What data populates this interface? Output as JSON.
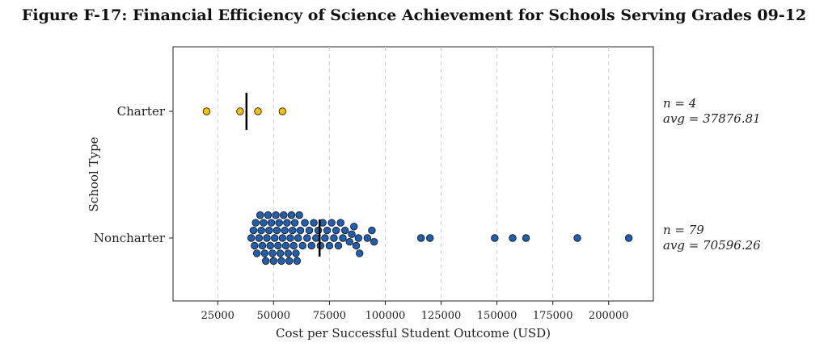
{
  "chart_data": {
    "type": "scatter",
    "title": "Figure F-17: Financial Efficiency of Science Achievement for Schools Serving Grades 09-12",
    "xlabel": "Cost per Successful Student Outcome (USD)",
    "ylabel": "School Type",
    "xlim": [
      5000,
      220000
    ],
    "xticks": [
      25000,
      50000,
      75000,
      100000,
      125000,
      150000,
      175000,
      200000
    ],
    "xtick_labels": [
      "25000",
      "50000",
      "75000",
      "100000",
      "125000",
      "150000",
      "175000",
      "200000"
    ],
    "grid": "vertical dashed",
    "categories": [
      "Charter",
      "Noncharter"
    ],
    "series": [
      {
        "name": "Charter",
        "color": "#F5C000",
        "n_label": "n = 4",
        "avg_label": "avg = 37876.81",
        "avg": 37876.81,
        "values": [
          20000,
          35000,
          43000,
          54000
        ]
      },
      {
        "name": "Noncharter",
        "color": "#1F5FAE",
        "n_label": "n = 79",
        "avg_label": "avg = 70596.26",
        "avg": 70596.26,
        "values": [
          40000,
          41000,
          41500,
          42000,
          42500,
          43500,
          44000,
          44500,
          45000,
          45500,
          46000,
          46500,
          47000,
          47500,
          48000,
          48500,
          49000,
          49500,
          50000,
          50500,
          51000,
          51500,
          52000,
          52500,
          53000,
          53500,
          54000,
          54500,
          55000,
          55500,
          56000,
          56500,
          57000,
          57500,
          58000,
          58500,
          59000,
          59500,
          60000,
          60500,
          61000,
          61500,
          62000,
          63000,
          64000,
          65000,
          66000,
          67000,
          68000,
          69000,
          70000,
          71000,
          72000,
          73000,
          74000,
          75000,
          76000,
          77000,
          78000,
          79000,
          80000,
          81000,
          82000,
          84000,
          85000,
          86000,
          87000,
          88000,
          88500,
          92000,
          94000,
          95000,
          116000,
          120000,
          149000,
          157000,
          163000,
          186000,
          209000
        ]
      }
    ]
  }
}
